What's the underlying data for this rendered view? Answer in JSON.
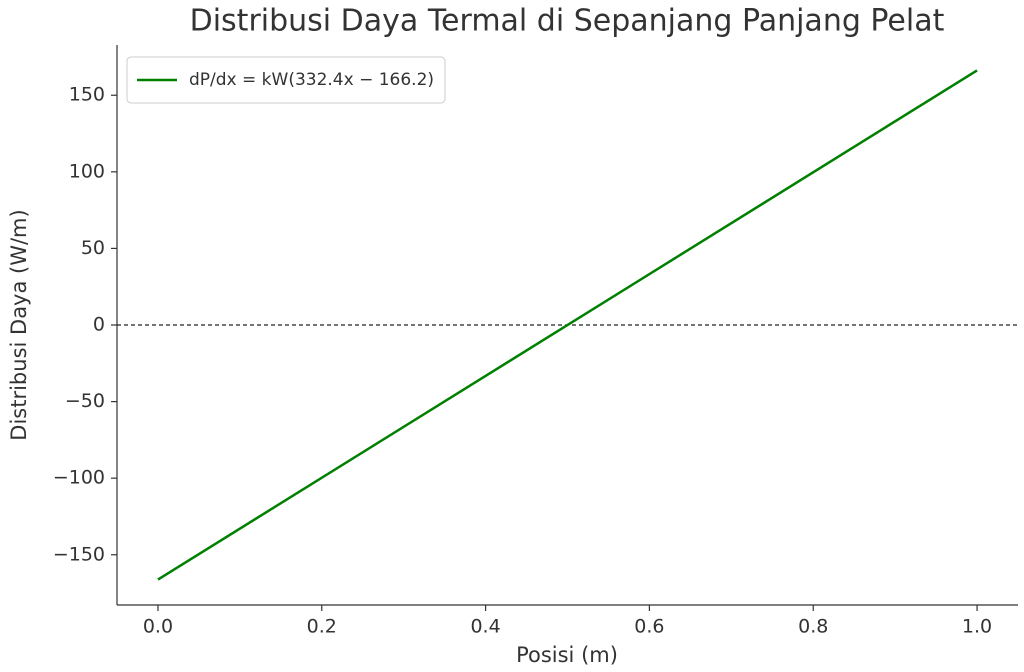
{
  "chart_data": {
    "type": "line",
    "title": "Distribusi Daya Termal di Sepanjang Panjang Pelat",
    "xlabel": "Posisi (m)",
    "ylabel": "Distribusi Daya (W/m)",
    "x": [
      0,
      1
    ],
    "series": [
      {
        "name": "dP/dx = kW(332.4x − 166.2)",
        "color": "#008000",
        "values": [
          -166.2,
          166.2
        ]
      }
    ],
    "hline": 0,
    "xlim": [
      -0.05,
      1.05
    ],
    "ylim": [
      -182.8,
      182.8
    ],
    "xticks": [
      {
        "value": 0,
        "label": "0.0"
      },
      0.2,
      0.4,
      0.6,
      0.8,
      {
        "value": 1,
        "label": "1.0"
      }
    ],
    "yticks": [
      {
        "value": -150,
        "label": "−150"
      },
      {
        "value": -100,
        "label": "−100"
      },
      {
        "value": -50,
        "label": "−50"
      },
      0,
      50,
      100,
      150
    ],
    "legend": "upper left",
    "grid": false
  }
}
